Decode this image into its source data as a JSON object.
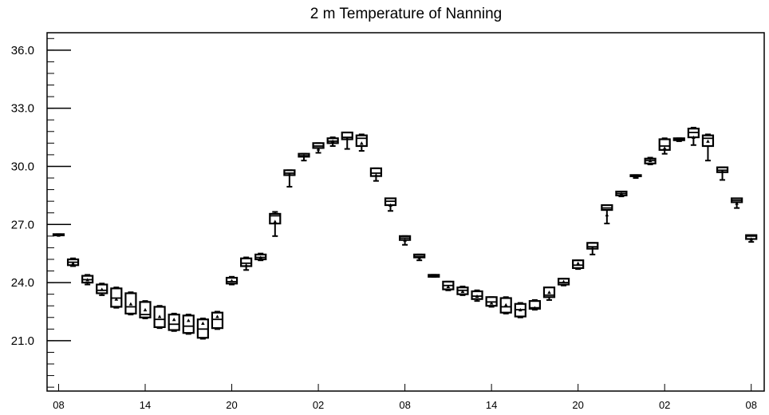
{
  "chart_data": {
    "type": "box",
    "title": "2 m Temperature of Nanning",
    "xlabel": "",
    "ylabel": "",
    "ylim": [
      18.4,
      36.9
    ],
    "yticks": [
      21.0,
      24.0,
      27.0,
      30.0,
      33.0,
      36.0
    ],
    "yminor_step": 0.6,
    "xlim": [
      -0.8,
      48.9
    ],
    "xticks": [
      {
        "x": 0,
        "label": "08"
      },
      {
        "x": 6,
        "label": "14"
      },
      {
        "x": 12,
        "label": "20"
      },
      {
        "x": 18,
        "label": "02"
      },
      {
        "x": 24,
        "label": "08"
      },
      {
        "x": 30,
        "label": "14"
      },
      {
        "x": 36,
        "label": "20"
      },
      {
        "x": 42,
        "label": "02"
      },
      {
        "x": 48,
        "label": "08"
      }
    ],
    "grid": false,
    "legend": "none",
    "series": [
      {
        "boxes": [
          {
            "x": 0,
            "min": 26.45,
            "q1": 26.45,
            "median": 26.45,
            "q3": 26.5,
            "max": 26.5,
            "mean": 26.45
          },
          {
            "x": 1,
            "min": 24.85,
            "q1": 24.9,
            "median": 25.05,
            "q3": 25.2,
            "max": 25.25,
            "mean": 25.0
          },
          {
            "x": 2,
            "min": 23.9,
            "q1": 24.0,
            "median": 24.15,
            "q3": 24.35,
            "max": 24.4,
            "mean": 24.15
          },
          {
            "x": 3,
            "min": 23.35,
            "q1": 23.45,
            "median": 23.6,
            "q3": 23.9,
            "max": 23.95,
            "mean": 23.65
          },
          {
            "x": 4,
            "min": 22.7,
            "q1": 22.75,
            "median": 23.2,
            "q3": 23.7,
            "max": 23.75,
            "mean": 23.15
          },
          {
            "x": 5,
            "min": 22.35,
            "q1": 22.4,
            "median": 22.75,
            "q3": 23.45,
            "max": 23.5,
            "mean": 22.9
          },
          {
            "x": 6,
            "min": 22.15,
            "q1": 22.2,
            "median": 22.35,
            "q3": 23.0,
            "max": 23.05,
            "mean": 22.6
          },
          {
            "x": 7,
            "min": 21.65,
            "q1": 21.7,
            "median": 22.1,
            "q3": 22.75,
            "max": 22.8,
            "mean": 22.25
          },
          {
            "x": 8,
            "min": 21.5,
            "q1": 21.55,
            "median": 21.85,
            "q3": 22.35,
            "max": 22.4,
            "mean": 22.1
          },
          {
            "x": 9,
            "min": 21.35,
            "q1": 21.4,
            "median": 21.75,
            "q3": 22.3,
            "max": 22.35,
            "mean": 22.05
          },
          {
            "x": 10,
            "min": 21.1,
            "q1": 21.15,
            "median": 21.6,
            "q3": 22.1,
            "max": 22.15,
            "mean": 21.9
          },
          {
            "x": 11,
            "min": 21.6,
            "q1": 21.65,
            "median": 22.1,
            "q3": 22.45,
            "max": 22.5,
            "mean": 22.25
          },
          {
            "x": 12,
            "min": 23.9,
            "q1": 23.95,
            "median": 24.05,
            "q3": 24.25,
            "max": 24.3,
            "mean": 24.1
          },
          {
            "x": 13,
            "min": 24.65,
            "q1": 24.85,
            "median": 25.0,
            "q3": 25.25,
            "max": 25.3,
            "mean": 24.9
          },
          {
            "x": 14,
            "min": 25.15,
            "q1": 25.2,
            "median": 25.3,
            "q3": 25.45,
            "max": 25.5,
            "mean": 25.3
          },
          {
            "x": 15,
            "min": 26.4,
            "q1": 27.05,
            "median": 27.45,
            "q3": 27.55,
            "max": 27.65,
            "mean": 27.15
          },
          {
            "x": 16,
            "min": 28.95,
            "q1": 29.55,
            "median": 29.65,
            "q3": 29.8,
            "max": 29.8,
            "mean": 29.6
          },
          {
            "x": 17,
            "min": 30.3,
            "q1": 30.5,
            "median": 30.55,
            "q3": 30.65,
            "max": 30.65,
            "mean": 30.55
          },
          {
            "x": 18,
            "min": 30.7,
            "q1": 30.95,
            "median": 31.05,
            "q3": 31.2,
            "max": 31.2,
            "mean": 30.9
          },
          {
            "x": 19,
            "min": 31.05,
            "q1": 31.2,
            "median": 31.3,
            "q3": 31.45,
            "max": 31.5,
            "mean": 31.3
          },
          {
            "x": 20,
            "min": 30.9,
            "q1": 31.4,
            "median": 31.5,
            "q3": 31.75,
            "max": 31.75,
            "mean": 31.45
          },
          {
            "x": 21,
            "min": 30.8,
            "q1": 31.05,
            "median": 31.45,
            "q3": 31.6,
            "max": 31.65,
            "mean": 31.2
          },
          {
            "x": 22,
            "min": 29.25,
            "q1": 29.5,
            "median": 29.65,
            "q3": 29.9,
            "max": 29.9,
            "mean": 29.55
          },
          {
            "x": 23,
            "min": 27.7,
            "q1": 28.0,
            "median": 28.2,
            "q3": 28.35,
            "max": 28.35,
            "mean": 28.0
          },
          {
            "x": 24,
            "min": 25.95,
            "q1": 26.2,
            "median": 26.3,
            "q3": 26.4,
            "max": 26.4,
            "mean": 26.2
          },
          {
            "x": 25,
            "min": 25.15,
            "q1": 25.3,
            "median": 25.35,
            "q3": 25.45,
            "max": 25.45,
            "mean": 25.3
          },
          {
            "x": 26,
            "min": 24.3,
            "q1": 24.3,
            "median": 24.35,
            "q3": 24.4,
            "max": 24.4,
            "mean": 24.35
          },
          {
            "x": 27,
            "min": 23.6,
            "q1": 23.65,
            "median": 23.85,
            "q3": 24.05,
            "max": 24.05,
            "mean": 23.8
          },
          {
            "x": 28,
            "min": 23.35,
            "q1": 23.4,
            "median": 23.6,
            "q3": 23.75,
            "max": 23.8,
            "mean": 23.55
          },
          {
            "x": 29,
            "min": 23.05,
            "q1": 23.15,
            "median": 23.3,
            "q3": 23.55,
            "max": 23.6,
            "mean": 23.3
          },
          {
            "x": 30,
            "min": 22.75,
            "q1": 22.8,
            "median": 23.0,
            "q3": 23.25,
            "max": 23.25,
            "mean": 22.95
          },
          {
            "x": 31,
            "min": 22.4,
            "q1": 22.45,
            "median": 22.75,
            "q3": 23.2,
            "max": 23.25,
            "mean": 22.85
          },
          {
            "x": 32,
            "min": 22.2,
            "q1": 22.25,
            "median": 22.6,
            "q3": 22.9,
            "max": 22.95,
            "mean": 22.6
          },
          {
            "x": 33,
            "min": 22.6,
            "q1": 22.65,
            "median": 22.7,
            "q3": 23.05,
            "max": 23.1,
            "mean": 22.7
          },
          {
            "x": 34,
            "min": 23.1,
            "q1": 23.25,
            "median": 23.35,
            "q3": 23.75,
            "max": 23.75,
            "mean": 23.5
          },
          {
            "x": 35,
            "min": 23.85,
            "q1": 23.9,
            "median": 24.0,
            "q3": 24.2,
            "max": 24.2,
            "mean": 24.05
          },
          {
            "x": 36,
            "min": 24.7,
            "q1": 24.75,
            "median": 24.9,
            "q3": 25.15,
            "max": 25.15,
            "mean": 25.0
          },
          {
            "x": 37,
            "min": 25.45,
            "q1": 25.75,
            "median": 25.85,
            "q3": 26.05,
            "max": 26.05,
            "mean": 25.8
          },
          {
            "x": 38,
            "min": 27.05,
            "q1": 27.75,
            "median": 27.85,
            "q3": 28.0,
            "max": 28.0,
            "mean": 27.5
          },
          {
            "x": 39,
            "min": 28.45,
            "q1": 28.5,
            "median": 28.6,
            "q3": 28.7,
            "max": 28.7,
            "mean": 28.6
          },
          {
            "x": 40,
            "min": 29.4,
            "q1": 29.5,
            "median": 29.5,
            "q3": 29.55,
            "max": 29.55,
            "mean": 29.5
          },
          {
            "x": 41,
            "min": 30.1,
            "q1": 30.15,
            "median": 30.3,
            "q3": 30.4,
            "max": 30.45,
            "mean": 30.3
          },
          {
            "x": 42,
            "min": 30.65,
            "q1": 30.85,
            "median": 31.05,
            "q3": 31.4,
            "max": 31.45,
            "mean": 30.95
          },
          {
            "x": 43,
            "min": 31.3,
            "q1": 31.35,
            "median": 31.4,
            "q3": 31.45,
            "max": 31.45,
            "mean": 31.4
          },
          {
            "x": 44,
            "min": 31.1,
            "q1": 31.5,
            "median": 31.75,
            "q3": 31.95,
            "max": 32.0,
            "mean": 31.5
          },
          {
            "x": 45,
            "min": 30.3,
            "q1": 31.05,
            "median": 31.45,
            "q3": 31.6,
            "max": 31.65,
            "mean": 31.3
          },
          {
            "x": 46,
            "min": 29.3,
            "q1": 29.7,
            "median": 29.8,
            "q3": 29.95,
            "max": 29.95,
            "mean": 29.75
          },
          {
            "x": 47,
            "min": 27.85,
            "q1": 28.15,
            "median": 28.25,
            "q3": 28.35,
            "max": 28.35,
            "mean": 28.1
          },
          {
            "x": 48,
            "min": 26.1,
            "q1": 26.25,
            "median": 26.4,
            "q3": 26.45,
            "max": 26.45,
            "mean": 26.25
          }
        ]
      }
    ]
  }
}
